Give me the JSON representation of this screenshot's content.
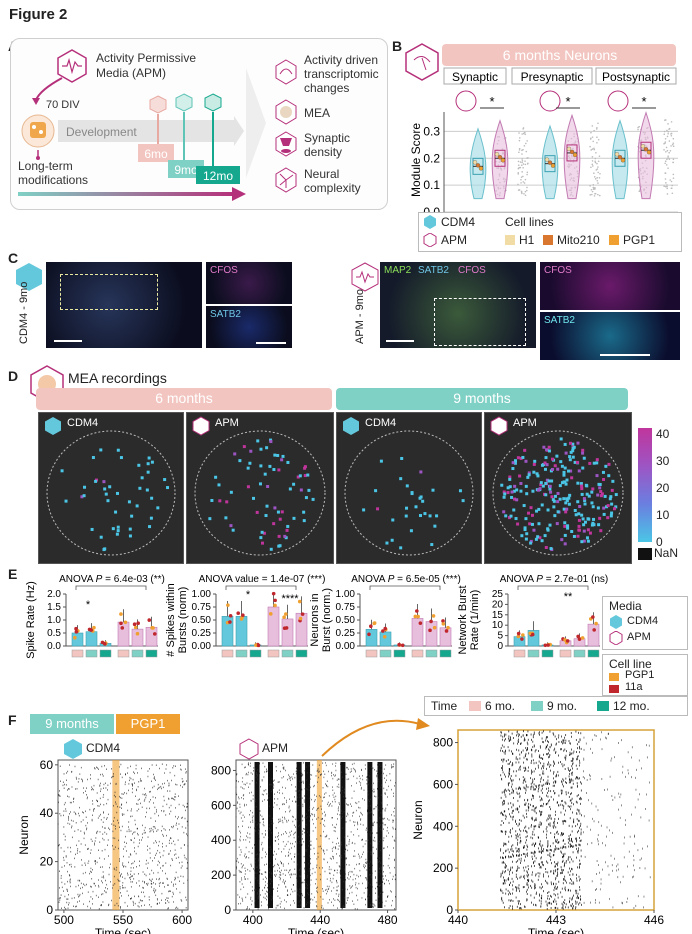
{
  "figure_title": "Figure 2",
  "panels": {
    "a": "A",
    "b": "B",
    "c": "C",
    "d": "D",
    "e": "E",
    "f": "F"
  },
  "panel_a": {
    "apm_title_line1": "Activity Permissive",
    "apm_title_line2": "Media (APM)",
    "div_label": "70 DIV",
    "development": "Development",
    "longterm_line1": "Long-term",
    "longterm_line2": "modifications",
    "timepoints": [
      "6mo",
      "9mo",
      "12mo"
    ],
    "outcomes": [
      {
        "l1": "Activity driven",
        "l2": "transcriptomic",
        "l3": "changes"
      },
      {
        "l1": "MEA",
        "l2": "",
        "l3": ""
      },
      {
        "l1": "Synaptic",
        "l2": "density",
        "l3": ""
      },
      {
        "l1": "Neural",
        "l2": "complexity",
        "l3": ""
      }
    ],
    "colors": {
      "apm": "#b5307a",
      "tp6": "#e8a9a2",
      "tp9": "#5fc4b8",
      "tp12": "#15a88f"
    }
  },
  "panel_b": {
    "banner": "6 months Neurons",
    "groups": [
      "Synaptic",
      "Presynaptic",
      "Postsynaptic"
    ],
    "ylabel": "Module Score",
    "yticks": [
      "0.0",
      "0.1",
      "0.2",
      "0.3"
    ],
    "sig": [
      "*",
      "*",
      "*"
    ],
    "legend": {
      "cdm4": "CDM4",
      "apm": "APM",
      "cell_lines": "Cell lines",
      "lines": [
        "H1",
        "Mito210",
        "PGP1"
      ]
    },
    "line_colors": [
      "#f1dca6",
      "#d9772e",
      "#f0a030"
    ],
    "chart_data": {
      "type": "violin",
      "categories": [
        "Synaptic",
        "Presynaptic",
        "Postsynaptic"
      ],
      "series": [
        {
          "name": "CDM4",
          "medians": [
            0.17,
            0.18,
            0.2
          ]
        },
        {
          "name": "APM",
          "medians": [
            0.2,
            0.22,
            0.23
          ]
        }
      ],
      "ylim": [
        0,
        0.35
      ]
    }
  },
  "panel_c": {
    "left_side": "CDM4 - 9mo",
    "right_side": "APM - 9mo",
    "cfos": "CFOS",
    "satb2": "SATB2",
    "map2": "MAP2",
    "satb2_main": "SATB2",
    "cfos_main": "CFOS"
  },
  "panel_d": {
    "title": "MEA recordings",
    "month6": "6 months",
    "month9": "9 months",
    "conditions": [
      "CDM4",
      "APM",
      "CDM4",
      "APM"
    ],
    "colorbar_ticks": [
      "40",
      "30",
      "20",
      "10",
      "0"
    ],
    "nan_label": "NaN",
    "chart_data": {
      "type": "heatmap",
      "colorbar_range": [
        0,
        40
      ],
      "panels": [
        "6 months CDM4",
        "6 months APM",
        "9 months CDM4",
        "9 months APM"
      ]
    }
  },
  "panel_e": {
    "anova": [
      {
        "label": "ANOVA ",
        "p": "P",
        "val": " = 6.4e-03 (**)"
      },
      {
        "label": "ANOVA value = 1.4e-07 (***)",
        "p": "",
        "val": ""
      },
      {
        "label": "ANOVA ",
        "p": "P",
        "val": "  = 6.5e-05 (***)"
      },
      {
        "label": "ANOVA ",
        "p": "P",
        "val": " = 2.7e-01 (ns)"
      }
    ],
    "ylabels": [
      [
        "Spike Rate (Hz)"
      ],
      [
        "# Spikes within",
        "Bursts (norm)"
      ],
      [
        "Neurons in",
        "Burst (norm.)"
      ],
      [
        "Network Burst",
        "Rate (1/min)"
      ]
    ],
    "yticks": [
      [
        "0.0",
        "0.5",
        "1.0",
        "1.5",
        "2.0"
      ],
      [
        "0.00",
        "0.25",
        "0.50",
        "0.75",
        "1.00"
      ],
      [
        "0.00",
        "0.25",
        "0.50",
        "0.75",
        "1.00"
      ],
      [
        "0",
        "5",
        "10",
        "15",
        "20",
        "25"
      ]
    ],
    "sig_marks": [
      "*",
      "*",
      "****",
      "**"
    ],
    "legend_media": "Media",
    "legend_cdm4": "CDM4",
    "legend_apm": "APM",
    "legend_cellline": "Cell line",
    "legend_pgp1": "PGP1",
    "legend_11a": "11a",
    "time_label": "Time",
    "time_items": [
      "6 mo.",
      "9 mo.",
      "12 mo."
    ],
    "colors": {
      "cdm4": "#64c8dc",
      "apm": "#e7bfdd",
      "pgp1": "#f0a030",
      "a11": "#c0272d"
    },
    "chart_data": [
      {
        "type": "bar",
        "title": "Spike Rate",
        "categories": [
          "CDM4 6mo",
          "CDM4 9mo",
          "CDM4 12mo",
          "APM 6mo",
          "APM 9mo",
          "APM 12mo"
        ],
        "values": [
          0.5,
          0.55,
          0.1,
          0.92,
          0.65,
          0.72
        ],
        "ylim": [
          0,
          2.0
        ]
      },
      {
        "type": "bar",
        "title": "# Spikes within Bursts",
        "categories": [
          "CDM4 6mo",
          "CDM4 9mo",
          "CDM4 12mo",
          "APM 6mo",
          "APM 9mo",
          "APM 12mo"
        ],
        "values": [
          0.57,
          0.57,
          0.02,
          0.75,
          0.52,
          0.63
        ],
        "ylim": [
          0,
          1.0
        ]
      },
      {
        "type": "bar",
        "title": "Neurons in Burst",
        "categories": [
          "CDM4 6mo",
          "CDM4 9mo",
          "CDM4 12mo",
          "APM 6mo",
          "APM 9mo",
          "APM 12mo"
        ],
        "values": [
          0.32,
          0.27,
          0.02,
          0.53,
          0.47,
          0.35
        ],
        "ylim": [
          0,
          1.0
        ]
      },
      {
        "type": "bar",
        "title": "Network Burst Rate",
        "categories": [
          "CDM4 6mo",
          "CDM4 9mo",
          "CDM4 12mo",
          "APM 6mo",
          "APM 9mo",
          "APM 12mo"
        ],
        "values": [
          4.5,
          7.5,
          0.5,
          2.5,
          3.5,
          10.5
        ],
        "ylim": [
          0,
          25
        ]
      }
    ]
  },
  "panel_f": {
    "tag_9mo": "9 months",
    "tag_pgp1": "PGP1",
    "cdm4": "CDM4",
    "apm": "APM",
    "ylabel": "Neuron",
    "xlabel": "Time (sec)",
    "raster1": {
      "xticks": [
        "500",
        "550",
        "600"
      ],
      "yticks": [
        "0",
        "20",
        "40",
        "60"
      ]
    },
    "raster2": {
      "xticks": [
        "400",
        "440",
        "480"
      ],
      "yticks": [
        "0",
        "200",
        "400",
        "600",
        "800"
      ]
    },
    "raster3": {
      "xticks": [
        "440",
        "443",
        "446"
      ],
      "yticks": [
        "0",
        "200",
        "400",
        "600",
        "800"
      ]
    },
    "chart_data": {
      "type": "scatter",
      "panels": [
        {
          "name": "CDM4",
          "xlim": [
            495,
            605
          ],
          "ylim": [
            0,
            62
          ]
        },
        {
          "name": "APM",
          "xlim": [
            390,
            485
          ],
          "ylim": [
            0,
            860
          ]
        },
        {
          "name": "APM zoom",
          "xlim": [
            440,
            446
          ],
          "ylim": [
            0,
            860
          ]
        }
      ]
    }
  }
}
